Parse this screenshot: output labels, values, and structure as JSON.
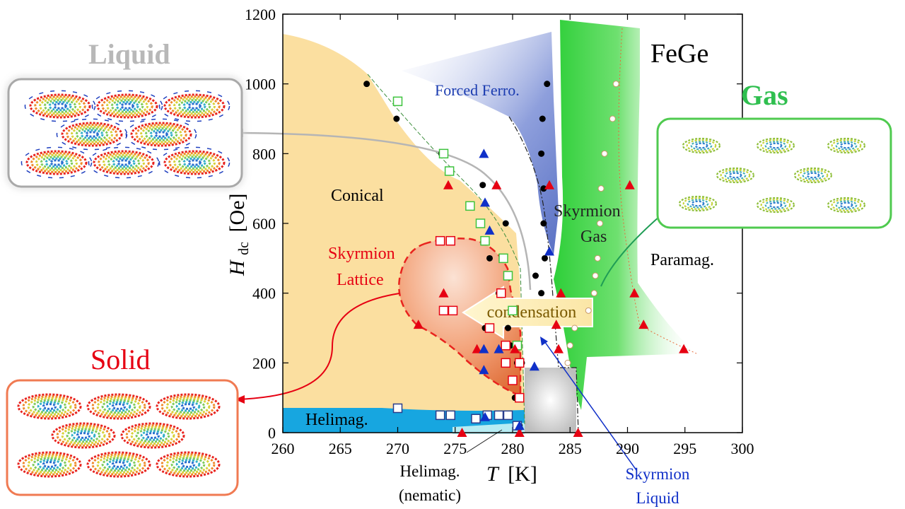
{
  "chart_data": {
    "type": "scatter",
    "title": "FeGe",
    "xlabel": "T",
    "xlabel_unit": "[K]",
    "ylabel": "H",
    "ylabel_sub": "dc",
    "ylabel_unit": "[Oe]",
    "xlim": [
      260,
      300
    ],
    "ylim": [
      0,
      1200
    ],
    "x_ticks": [
      260,
      265,
      270,
      275,
      280,
      285,
      290,
      295,
      300
    ],
    "y_ticks": [
      0,
      200,
      400,
      600,
      800,
      1000,
      1200
    ],
    "regions": {
      "conical": "Conical",
      "helimag": "Helimag.",
      "forced_ferro": "Forced Ferro.",
      "skyrmion_gas_1": "Skyrmion",
      "skyrmion_gas_2": "Gas",
      "paramag": "Paramag.",
      "skyrmion_lattice_1": "Skyrmion",
      "skyrmion_lattice_2": "Lattice",
      "helimag_nematic_1": "Helimag.",
      "helimag_nematic_2": "(nematic)",
      "skyrmion_liquid_1": "Skyrmion",
      "skyrmion_liquid_2": "Liquid",
      "condensation": "condensation"
    },
    "series": [
      {
        "marker": "filled-circle",
        "points": [
          [
            267.3,
            1000
          ],
          [
            269.9,
            900
          ],
          [
            273.8,
            800
          ],
          [
            277.4,
            710
          ],
          [
            279.4,
            600
          ],
          [
            278.0,
            500
          ],
          [
            278.8,
            400
          ],
          [
            279.6,
            300
          ],
          [
            279.8,
            250
          ],
          [
            280.4,
            200
          ],
          [
            280.2,
            100
          ],
          [
            280.6,
            20
          ],
          [
            283.0,
            1000
          ],
          [
            282.6,
            900
          ],
          [
            282.5,
            800
          ],
          [
            282.7,
            700
          ],
          [
            282.7,
            600
          ],
          [
            282.8,
            500
          ],
          [
            282.0,
            450
          ],
          [
            282.5,
            400
          ],
          [
            277.6,
            300
          ],
          [
            280.4,
            200
          ],
          [
            280.8,
            200
          ]
        ]
      },
      {
        "marker": "open-circle",
        "points": [
          [
            289.0,
            1000
          ],
          [
            288.7,
            900
          ],
          [
            288.0,
            800
          ],
          [
            287.7,
            700
          ],
          [
            287.6,
            600
          ],
          [
            287.4,
            500
          ],
          [
            287.2,
            450
          ],
          [
            287.1,
            400
          ],
          [
            286.6,
            350
          ],
          [
            285.4,
            300
          ],
          [
            285.0,
            250
          ],
          [
            284.8,
            200
          ]
        ]
      },
      {
        "marker": "green-open-square",
        "points": [
          [
            270,
            950
          ],
          [
            274,
            800
          ],
          [
            274.5,
            750
          ],
          [
            276.3,
            650
          ],
          [
            277.2,
            600
          ],
          [
            277.6,
            550
          ],
          [
            279.2,
            500
          ],
          [
            279.6,
            450
          ],
          [
            280.0,
            350
          ],
          [
            280.4,
            250
          ]
        ]
      },
      {
        "marker": "red-open-square",
        "points": [
          [
            273.7,
            550
          ],
          [
            274.6,
            550
          ],
          [
            274.0,
            350
          ],
          [
            274.8,
            350
          ],
          [
            279.0,
            400
          ],
          [
            278.0,
            300
          ],
          [
            279.4,
            250
          ],
          [
            279.4,
            200
          ],
          [
            280.6,
            200
          ],
          [
            280.0,
            150
          ],
          [
            280.6,
            100
          ]
        ]
      },
      {
        "marker": "blue-open-square",
        "points": [
          [
            270.0,
            70
          ],
          [
            273.7,
            50
          ],
          [
            274.6,
            50
          ],
          [
            276.8,
            40
          ],
          [
            277.8,
            50
          ],
          [
            278.8,
            50
          ],
          [
            279.6,
            50
          ],
          [
            280.4,
            20
          ]
        ]
      },
      {
        "marker": "red-filled-triangle",
        "points": [
          [
            274.4,
            710
          ],
          [
            278.6,
            710
          ],
          [
            283.2,
            710
          ],
          [
            290.2,
            710
          ],
          [
            274.0,
            400
          ],
          [
            284.2,
            400
          ],
          [
            290.6,
            400
          ],
          [
            271.8,
            310
          ],
          [
            283.8,
            310
          ],
          [
            291.4,
            310
          ],
          [
            294.9,
            240
          ],
          [
            276.9,
            240
          ],
          [
            280.2,
            240
          ],
          [
            284.0,
            240
          ],
          [
            275.6,
            0
          ],
          [
            285.7,
            0
          ],
          [
            280.6,
            0
          ]
        ]
      },
      {
        "marker": "blue-filled-triangle",
        "points": [
          [
            277.5,
            800
          ],
          [
            277.6,
            660
          ],
          [
            278.0,
            580
          ],
          [
            283.2,
            520
          ],
          [
            277.5,
            240
          ],
          [
            277.5,
            180
          ],
          [
            278.8,
            240
          ],
          [
            281.9,
            190
          ],
          [
            277.6,
            45
          ],
          [
            280.6,
            20
          ]
        ]
      }
    ]
  },
  "liquid_panel": {
    "title": "Liquid"
  },
  "gas_panel": {
    "title": "Gas"
  },
  "solid_panel": {
    "title": "Solid"
  },
  "colors": {
    "conical": "#fbdfa0",
    "lattice_center": "#f8c8a8",
    "lattice_edge": "#e07a4a",
    "forced_ferro": "#6f84cf",
    "gas_region": "#44d44a",
    "helimag": "#17a6e0",
    "nematic": "#b7ecf3",
    "liquid_region": "#c8c8c8",
    "red_mark": "#e60012",
    "blue_mark": "#1030c8",
    "green_mark": "#3ec33e",
    "dashed_red": "#e8231e",
    "liquid_title": "#b8b8b8",
    "gas_title": "#2fbf4f",
    "solid_title": "#e60012"
  }
}
